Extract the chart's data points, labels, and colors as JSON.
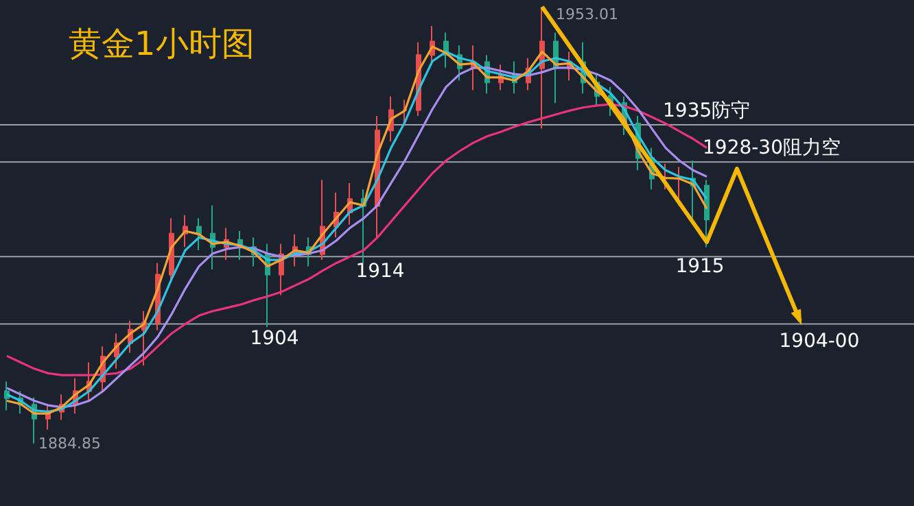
{
  "chart_data": {
    "type": "candlestick",
    "title": "黄金1小时图",
    "categories": [
      null,
      null,
      null,
      null,
      null,
      null,
      null,
      null,
      null,
      null,
      null,
      null,
      null,
      null,
      null,
      null,
      null,
      null,
      null,
      null,
      null,
      null,
      null,
      null,
      null,
      null,
      null,
      null,
      null,
      null,
      null,
      null,
      null,
      null,
      null,
      null,
      null,
      null,
      null,
      null,
      null,
      null,
      null,
      null,
      null,
      null,
      null,
      null,
      null,
      null,
      null,
      null
    ],
    "ohlc": [
      [
        1893.0,
        1894.5,
        1890.0,
        1891.9
      ],
      [
        1891.9,
        1893.0,
        1889.5,
        1890.9
      ],
      [
        1890.9,
        1892.0,
        1884.85,
        1888.7
      ],
      [
        1888.7,
        1891.0,
        1887.0,
        1889.8
      ],
      [
        1889.8,
        1892.5,
        1888.5,
        1890.9
      ],
      [
        1890.9,
        1895.0,
        1889.5,
        1893.0
      ],
      [
        1893.0,
        1897.5,
        1891.5,
        1894.5
      ],
      [
        1894.5,
        1900.0,
        1893.0,
        1898.4
      ],
      [
        1898.4,
        1902.0,
        1896.5,
        1900.5
      ],
      [
        1900.5,
        1904.0,
        1899.0,
        1902.6
      ],
      [
        1902.6,
        1905.5,
        1897.0,
        1903.7
      ],
      [
        1903.7,
        1913.0,
        1902.5,
        1911.2
      ],
      [
        1911.2,
        1920.0,
        1910.0,
        1917.6
      ],
      [
        1917.6,
        1920.5,
        1915.5,
        1918.7
      ],
      [
        1918.7,
        1920.0,
        1915.0,
        1917.6
      ],
      [
        1917.6,
        1922.0,
        1912.0,
        1915.5
      ],
      [
        1915.5,
        1918.5,
        1913.5,
        1916.6
      ],
      [
        1916.6,
        1918.0,
        1913.5,
        1915.5
      ],
      [
        1915.5,
        1917.0,
        1912.5,
        1914.4
      ],
      [
        1914.4,
        1916.0,
        1903.0,
        1911.2
      ],
      [
        1911.2,
        1916.0,
        1908.0,
        1914.4
      ],
      [
        1914.4,
        1917.5,
        1912.5,
        1915.5
      ],
      [
        1915.5,
        1917.0,
        1912.5,
        1914.4
      ],
      [
        1914.4,
        1926.0,
        1913.5,
        1918.7
      ],
      [
        1918.7,
        1924.0,
        1917.0,
        1920.9
      ],
      [
        1920.9,
        1925.5,
        1919.0,
        1923.0
      ],
      [
        1923.0,
        1924.5,
        1913.0,
        1921.9
      ],
      [
        1921.9,
        1936.0,
        1917.0,
        1933.7
      ],
      [
        1933.7,
        1939.0,
        1932.0,
        1936.9
      ],
      [
        1936.9,
        1938.5,
        1934.5,
        1936.9
      ],
      [
        1936.9,
        1947.5,
        1936.0,
        1945.5
      ],
      [
        1945.5,
        1950.0,
        1944.0,
        1947.6
      ],
      [
        1947.6,
        1949.0,
        1943.5,
        1945.5
      ],
      [
        1945.5,
        1947.0,
        1941.5,
        1943.4
      ],
      [
        1943.4,
        1947.0,
        1940.0,
        1944.4
      ],
      [
        1944.4,
        1945.5,
        1939.5,
        1941.2
      ],
      [
        1941.2,
        1944.0,
        1940.0,
        1942.3
      ],
      [
        1942.3,
        1944.5,
        1939.5,
        1941.2
      ],
      [
        1941.2,
        1945.0,
        1940.0,
        1943.4
      ],
      [
        1943.4,
        1953.01,
        1934.0,
        1947.6
      ],
      [
        1947.6,
        1949.0,
        1938.0,
        1943.4
      ],
      [
        1943.4,
        1946.0,
        1941.5,
        1944.4
      ],
      [
        1944.4,
        1947.5,
        1939.5,
        1941.2
      ],
      [
        1941.2,
        1942.5,
        1937.5,
        1939.1
      ],
      [
        1939.1,
        1940.5,
        1936.0,
        1938.0
      ],
      [
        1938.0,
        1939.0,
        1933.0,
        1934.8
      ],
      [
        1934.8,
        1936.0,
        1927.5,
        1929.4
      ],
      [
        1929.4,
        1931.0,
        1924.5,
        1926.2
      ],
      [
        1926.2,
        1928.5,
        1924.5,
        1926.2
      ],
      [
        1926.2,
        1928.0,
        1922.0,
        1926.2
      ],
      [
        1926.2,
        1929.0,
        1920.0,
        1925.1
      ],
      [
        1925.1,
        1926.0,
        1915.5,
        1919.8
      ]
    ],
    "colors": [
      "#26a68a",
      "#26a68a",
      "#26a68a",
      "#e84f4f",
      "#e84f4f",
      "#e84f4f",
      "#e84f4f",
      "#e84f4f",
      "#e84f4f",
      "#e84f4f",
      "#e84f4f",
      "#e84f4f",
      "#e84f4f",
      "#e84f4f",
      "#26a68a",
      "#26a68a",
      "#e84f4f",
      "#26a68a",
      "#26a68a",
      "#26a68a",
      "#e84f4f",
      "#e84f4f",
      "#26a68a",
      "#e84f4f",
      "#e84f4f",
      "#e84f4f",
      "#26a68a",
      "#e84f4f",
      "#e84f4f",
      "#e84f4f",
      "#e84f4f",
      "#e84f4f",
      "#26a68a",
      "#26a68a",
      "#e84f4f",
      "#26a68a",
      "#e84f4f",
      "#26a68a",
      "#e84f4f",
      "#e84f4f",
      "#26a68a",
      "#e84f4f",
      "#26a68a",
      "#26a68a",
      "#26a68a",
      "#26a68a",
      "#26a68a",
      "#26a68a",
      "#e84f4f",
      "#e84f4f",
      "#26a68a",
      "#26a68a"
    ],
    "series": [
      {
        "type": "line",
        "color": "#e8357a",
        "values": [
          1898.5,
          1897.5,
          1896.5,
          1895.8,
          1895.5,
          1895.5,
          1895.5,
          1895.6,
          1895.8,
          1896.5,
          1898.0,
          1900.0,
          1902.0,
          1903.5,
          1904.8,
          1905.5,
          1906.0,
          1906.5,
          1907.2,
          1907.8,
          1908.5,
          1909.5,
          1910.5,
          1911.8,
          1913.0,
          1914.0,
          1915.0,
          1917.0,
          1919.5,
          1922.0,
          1924.5,
          1927.0,
          1929.0,
          1930.5,
          1931.8,
          1932.8,
          1933.5,
          1934.3,
          1935.0,
          1935.6,
          1936.2,
          1936.8,
          1937.3,
          1937.6,
          1937.8,
          1937.5,
          1936.8,
          1935.8,
          1934.8,
          1933.6,
          1932.4,
          1931.0
        ]
      },
      {
        "type": "line",
        "color": "#a98ef0",
        "values": [
          1893.5,
          1892.5,
          1891.5,
          1890.8,
          1890.5,
          1890.8,
          1891.5,
          1893.0,
          1895.0,
          1897.0,
          1899.0,
          1901.5,
          1905.0,
          1909.0,
          1912.5,
          1914.5,
          1915.2,
          1915.5,
          1915.3,
          1914.5,
          1914.0,
          1914.2,
          1914.5,
          1915.0,
          1916.5,
          1918.5,
          1920.0,
          1922.0,
          1925.5,
          1929.0,
          1933.0,
          1937.0,
          1940.5,
          1942.5,
          1943.5,
          1943.5,
          1943.0,
          1942.5,
          1942.3,
          1942.8,
          1943.5,
          1943.5,
          1943.2,
          1942.5,
          1941.5,
          1939.5,
          1937.0,
          1934.0,
          1931.0,
          1929.0,
          1927.5,
          1926.5
        ]
      },
      {
        "type": "line",
        "color": "#2ec4e0",
        "values": [
          1892.5,
          1891.5,
          1890.0,
          1889.8,
          1890.2,
          1891.5,
          1893.0,
          1895.5,
          1898.0,
          1900.5,
          1902.0,
          1905.5,
          1910.5,
          1915.0,
          1917.0,
          1916.5,
          1916.0,
          1915.8,
          1915.0,
          1913.5,
          1913.5,
          1914.5,
          1914.8,
          1916.0,
          1918.5,
          1921.0,
          1922.0,
          1926.0,
          1931.0,
          1935.0,
          1940.0,
          1944.5,
          1946.0,
          1945.0,
          1944.5,
          1943.0,
          1942.5,
          1942.0,
          1942.5,
          1944.5,
          1945.0,
          1944.5,
          1943.0,
          1941.0,
          1939.5,
          1937.0,
          1933.0,
          1929.5,
          1927.5,
          1926.5,
          1926.0,
          1923.0
        ]
      },
      {
        "type": "line",
        "color": "#f7a234",
        "values": [
          1891.5,
          1891.0,
          1889.5,
          1889.5,
          1890.5,
          1892.5,
          1894.0,
          1897.5,
          1900.0,
          1902.0,
          1903.5,
          1909.0,
          1915.5,
          1918.0,
          1917.5,
          1916.0,
          1916.3,
          1915.7,
          1914.7,
          1912.5,
          1913.5,
          1915.0,
          1914.6,
          1917.5,
          1920.0,
          1922.5,
          1922.0,
          1930.0,
          1935.5,
          1936.8,
          1943.0,
          1946.8,
          1945.8,
          1944.0,
          1944.2,
          1942.0,
          1942.0,
          1941.5,
          1943.0,
          1946.0,
          1944.0,
          1944.2,
          1942.0,
          1939.8,
          1938.3,
          1935.5,
          1930.5,
          1927.0,
          1926.3,
          1926.2,
          1925.3,
          1921.5
        ]
      }
    ],
    "ref_lines": [
      {
        "axis": "y",
        "value": 1934.6,
        "label": "1935防守",
        "color": "#9aa0a6"
      },
      {
        "axis": "y",
        "value": 1928.8,
        "label": "1928-30阻力空",
        "color": "#9aa0a6"
      },
      {
        "axis": "y",
        "value": 1914,
        "color": "#9aa0a6"
      },
      {
        "axis": "y",
        "value": 1903.5,
        "color": "#9aa0a6"
      }
    ],
    "annotations": [
      "1953.01",
      "1884.85",
      {
        "text": "1904",
        "y": 1903.5
      },
      {
        "text": "1914",
        "y": 1914
      },
      {
        "text": "1915",
        "y": 1915
      },
      {
        "text": "1904-00",
        "y": 1903.5
      }
    ],
    "tick_labels": false
  }
}
